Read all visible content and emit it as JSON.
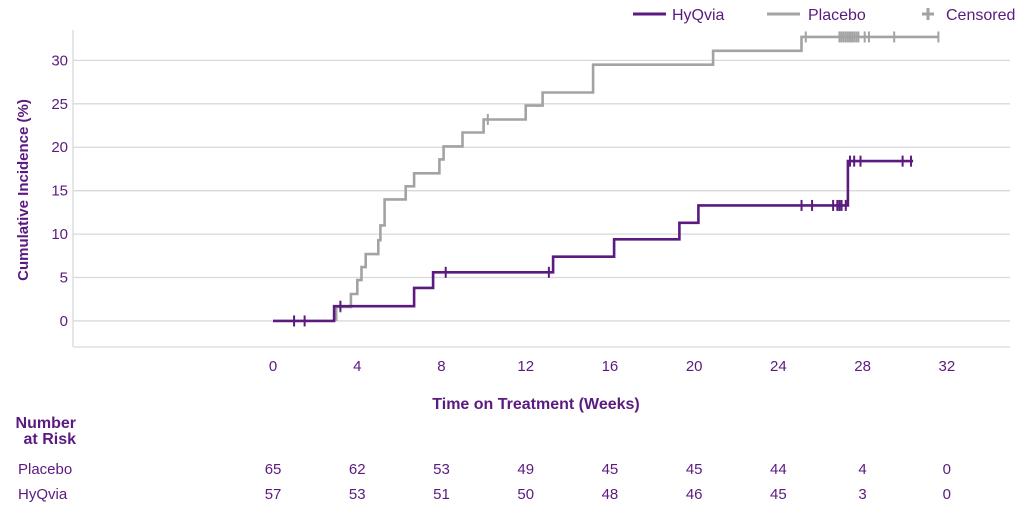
{
  "chart_data": {
    "type": "line",
    "step": true,
    "title": "",
    "xlabel": "Time on Treatment (Weeks)",
    "ylabel": "Cumulative Incidence (%)",
    "xlim": [
      -9.5,
      35
    ],
    "ylim": [
      -3,
      33.5
    ],
    "xticks": [
      0,
      4,
      8,
      12,
      16,
      20,
      24,
      28,
      32
    ],
    "yticks": [
      0,
      5,
      10,
      15,
      20,
      25,
      30
    ],
    "grid": "horizontal",
    "legend_position": "top-right",
    "colors": {
      "HyQvia": "#5b1a7f",
      "Placebo": "#a3a3a3",
      "Censored": "#a3a3a3",
      "text": "#5b1a7f",
      "grid": "#d9d9dd"
    },
    "legend": [
      {
        "label": "HyQvia",
        "marker": "line",
        "color": "#5b1a7f"
      },
      {
        "label": "Placebo",
        "marker": "line",
        "color": "#a3a3a3"
      },
      {
        "label": "Censored",
        "marker": "plus",
        "color": "#a3a3a3"
      }
    ],
    "series": [
      {
        "name": "Placebo",
        "color": "#a3a3a3",
        "steps": [
          [
            3.0,
            0
          ],
          [
            3.0,
            1.6
          ],
          [
            3.7,
            1.6
          ],
          [
            3.7,
            3.1
          ],
          [
            4.0,
            3.1
          ],
          [
            4.0,
            4.7
          ],
          [
            4.2,
            4.7
          ],
          [
            4.2,
            6.2
          ],
          [
            4.4,
            6.2
          ],
          [
            4.4,
            7.7
          ],
          [
            5.0,
            7.7
          ],
          [
            5.0,
            9.3
          ],
          [
            5.1,
            9.3
          ],
          [
            5.1,
            11.0
          ],
          [
            5.3,
            11.0
          ],
          [
            5.3,
            14.0
          ],
          [
            6.3,
            14.0
          ],
          [
            6.3,
            15.5
          ],
          [
            6.7,
            15.5
          ],
          [
            6.7,
            17.0
          ],
          [
            7.9,
            17.0
          ],
          [
            7.9,
            18.6
          ],
          [
            8.1,
            18.6
          ],
          [
            8.1,
            20.1
          ],
          [
            9.0,
            20.1
          ],
          [
            9.0,
            21.7
          ],
          [
            10.0,
            21.7
          ],
          [
            10.0,
            23.2
          ],
          [
            12.0,
            23.2
          ],
          [
            12.0,
            24.8
          ],
          [
            12.8,
            24.8
          ],
          [
            12.8,
            26.3
          ],
          [
            15.2,
            26.3
          ],
          [
            15.2,
            29.5
          ],
          [
            20.9,
            29.5
          ],
          [
            20.9,
            31.1
          ],
          [
            25.1,
            31.1
          ],
          [
            25.1,
            32.7
          ],
          [
            31.6,
            32.7
          ]
        ],
        "censored": [
          [
            3.2,
            1.6
          ],
          [
            10.2,
            23.2
          ],
          [
            25.3,
            32.7
          ],
          [
            26.9,
            32.7
          ],
          [
            27.0,
            32.7
          ],
          [
            27.1,
            32.7
          ],
          [
            27.2,
            32.7
          ],
          [
            27.3,
            32.7
          ],
          [
            27.4,
            32.7
          ],
          [
            27.5,
            32.7
          ],
          [
            27.6,
            32.7
          ],
          [
            27.7,
            32.7
          ],
          [
            27.8,
            32.7
          ],
          [
            28.1,
            32.7
          ],
          [
            28.3,
            32.7
          ],
          [
            29.5,
            32.7
          ],
          [
            31.6,
            32.7
          ]
        ]
      },
      {
        "name": "HyQvia",
        "color": "#5b1a7f",
        "steps": [
          [
            0,
            0
          ],
          [
            2.9,
            0
          ],
          [
            2.9,
            1.7
          ],
          [
            6.7,
            1.7
          ],
          [
            6.7,
            3.8
          ],
          [
            7.6,
            3.8
          ],
          [
            7.6,
            5.6
          ],
          [
            13.3,
            5.6
          ],
          [
            13.3,
            7.4
          ],
          [
            16.2,
            7.4
          ],
          [
            16.2,
            9.4
          ],
          [
            19.3,
            9.4
          ],
          [
            19.3,
            11.3
          ],
          [
            20.2,
            11.3
          ],
          [
            20.2,
            13.3
          ],
          [
            27.3,
            13.3
          ],
          [
            27.3,
            18.4
          ],
          [
            30.4,
            18.4
          ]
        ],
        "censored": [
          [
            1.0,
            0
          ],
          [
            1.5,
            0
          ],
          [
            3.2,
            1.7
          ],
          [
            8.2,
            5.6
          ],
          [
            13.1,
            5.6
          ],
          [
            25.1,
            13.3
          ],
          [
            25.6,
            13.3
          ],
          [
            26.6,
            13.3
          ],
          [
            26.8,
            13.3
          ],
          [
            26.9,
            13.3
          ],
          [
            27.0,
            13.3
          ],
          [
            27.2,
            13.3
          ],
          [
            27.4,
            18.4
          ],
          [
            27.6,
            18.4
          ],
          [
            27.9,
            18.4
          ],
          [
            29.9,
            18.4
          ],
          [
            30.3,
            18.4
          ]
        ]
      }
    ]
  },
  "risk_table": {
    "title_line1": "Number",
    "title_line2": "at Risk",
    "times": [
      0,
      4,
      8,
      12,
      16,
      20,
      24,
      28,
      32
    ],
    "rows": [
      {
        "label": "Placebo",
        "values": [
          "65",
          "62",
          "53",
          "49",
          "45",
          "45",
          "44",
          "4",
          "0"
        ]
      },
      {
        "label": "HyQvia",
        "values": [
          "57",
          "53",
          "51",
          "50",
          "48",
          "46",
          "45",
          "3",
          "0"
        ]
      }
    ]
  }
}
